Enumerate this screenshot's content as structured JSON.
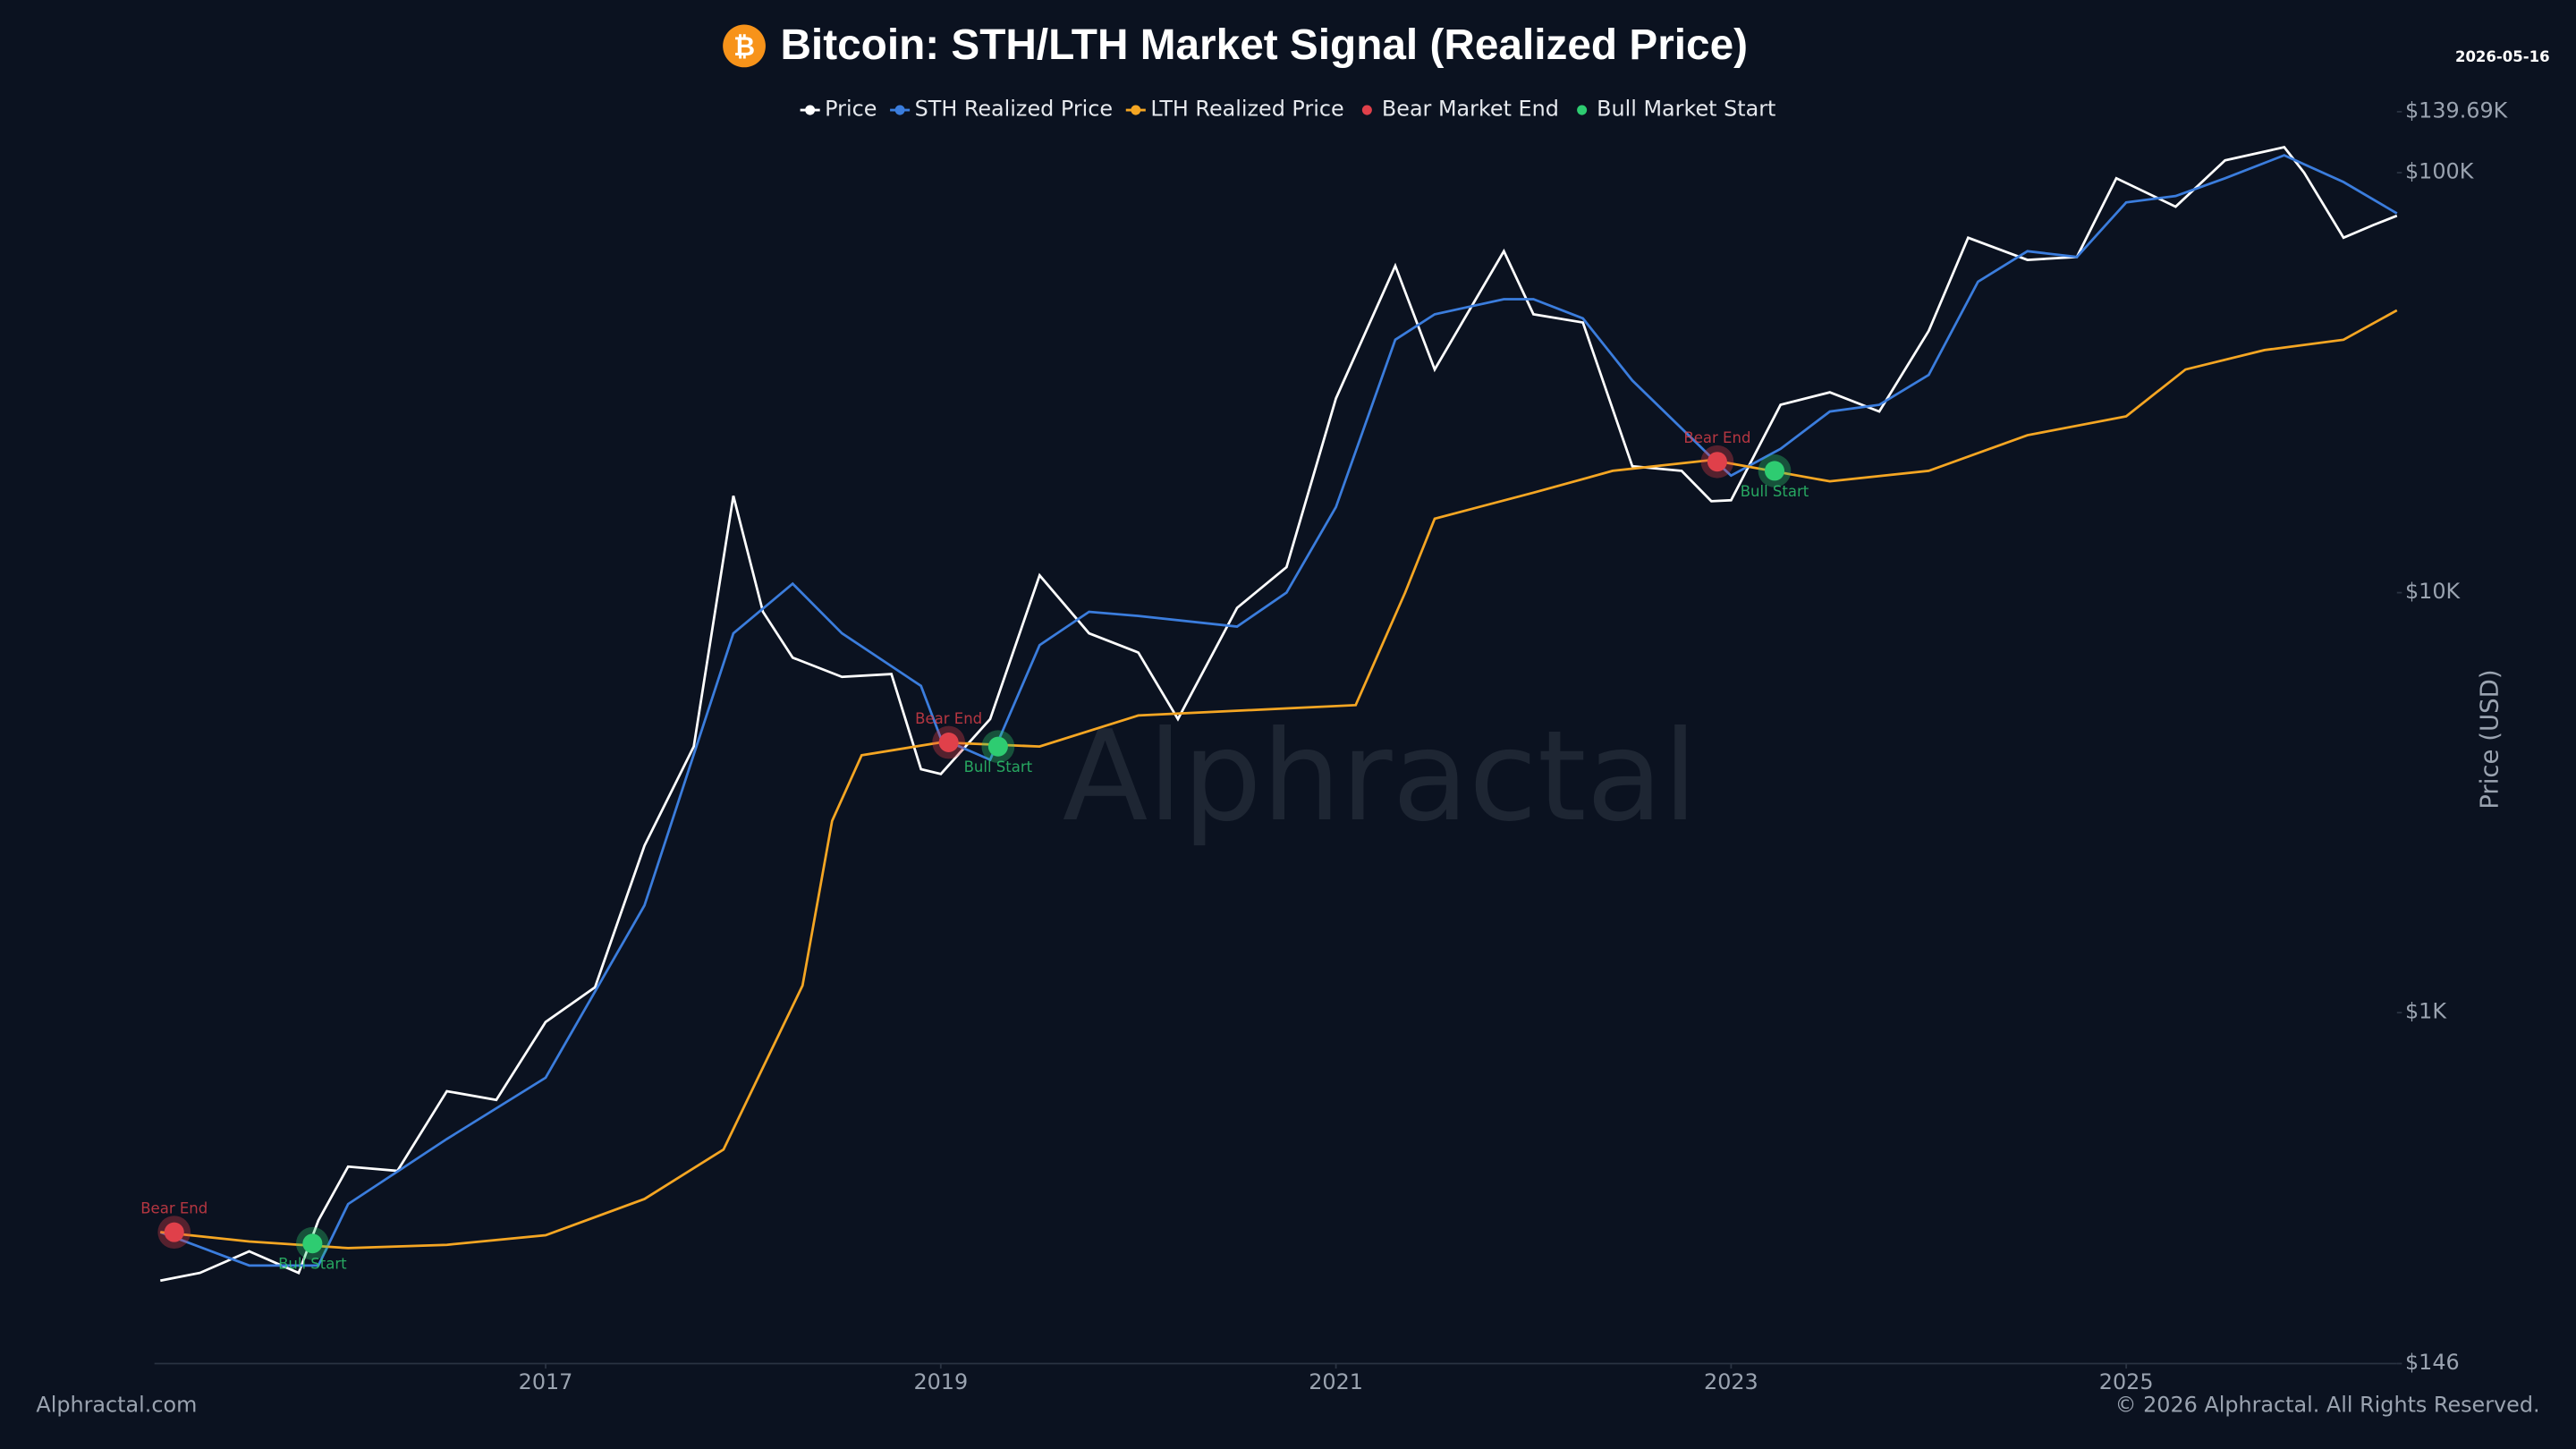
{
  "chart_data": {
    "type": "line",
    "title": "Bitcoin: STH/LTH Market Signal (Realized Price)",
    "title_icon": "₿",
    "date": "2026-05-16",
    "y_label": "Price (USD)",
    "watermark": "Alphractal",
    "footer_left": "Alphractal.com",
    "footer_right": "© 2026 Alphractal. All Rights Reserved.",
    "log_y": true,
    "xlim": [
      2015.02,
      2026.37
    ],
    "xticks": [
      2017,
      2019,
      2021,
      2023,
      2025
    ],
    "ylim": [
      146,
      139690
    ],
    "yticks": [
      {
        "value": 146,
        "label": "$146"
      },
      {
        "value": 1000,
        "label": "$1K"
      },
      {
        "value": 10000,
        "label": "$10K"
      },
      {
        "value": 100000,
        "label": "$100K"
      },
      {
        "value": 139690,
        "label": "$139.69K"
      }
    ],
    "series": [
      {
        "name": "Price",
        "color": "#ffffff",
        "x": [
          2015.05,
          2015.25,
          2015.5,
          2015.75,
          2015.85,
          2016.0,
          2016.25,
          2016.5,
          2016.75,
          2017.0,
          2017.25,
          2017.5,
          2017.75,
          2017.95,
          2018.1,
          2018.25,
          2018.5,
          2018.75,
          2018.9,
          2019.0,
          2019.25,
          2019.5,
          2019.75,
          2020.0,
          2020.2,
          2020.5,
          2020.75,
          2021.0,
          2021.3,
          2021.5,
          2021.85,
          2022.0,
          2022.25,
          2022.5,
          2022.75,
          2022.9,
          2023.0,
          2023.25,
          2023.5,
          2023.75,
          2024.0,
          2024.2,
          2024.5,
          2024.75,
          2024.95,
          2025.25,
          2025.5,
          2025.8,
          2025.9,
          2026.1,
          2026.25,
          2026.37
        ],
        "values": [
          230,
          240,
          270,
          240,
          320,
          430,
          420,
          650,
          620,
          950,
          1150,
          2500,
          4300,
          17000,
          9000,
          7000,
          6300,
          6400,
          3800,
          3700,
          5000,
          11000,
          8000,
          7200,
          5000,
          9200,
          11500,
          29000,
          60000,
          34000,
          65000,
          46000,
          44000,
          20000,
          19500,
          16500,
          16600,
          28000,
          30000,
          27000,
          42000,
          70000,
          62000,
          63000,
          97000,
          83000,
          107000,
          115000,
          100000,
          70000,
          75000,
          79000
        ]
      },
      {
        "name": "STH Realized Price",
        "color": "#3b7ddd",
        "x": [
          2015.05,
          2015.5,
          2015.85,
          2016.0,
          2016.5,
          2017.0,
          2017.5,
          2017.95,
          2018.25,
          2018.5,
          2018.9,
          2019.0,
          2019.25,
          2019.5,
          2019.75,
          2020.0,
          2020.5,
          2020.75,
          2021.0,
          2021.3,
          2021.5,
          2021.85,
          2022.0,
          2022.25,
          2022.5,
          2022.9,
          2023.0,
          2023.25,
          2023.5,
          2023.75,
          2024.0,
          2024.25,
          2024.5,
          2024.75,
          2025.0,
          2025.25,
          2025.5,
          2025.8,
          2026.1,
          2026.37
        ],
        "values": [
          300,
          250,
          250,
          350,
          500,
          700,
          1800,
          8000,
          10500,
          8000,
          6000,
          4500,
          4000,
          7500,
          9000,
          8800,
          8300,
          10000,
          16000,
          40000,
          46000,
          50000,
          50000,
          45000,
          32000,
          21000,
          19000,
          22000,
          27000,
          28000,
          33000,
          55000,
          65000,
          63000,
          85000,
          88000,
          97000,
          110000,
          95000,
          80000
        ]
      },
      {
        "name": "LTH Realized Price",
        "color": "#f5a623",
        "x": [
          2015.05,
          2015.5,
          2016.0,
          2016.5,
          2017.0,
          2017.5,
          2017.9,
          2018.1,
          2018.3,
          2018.45,
          2018.6,
          2019.0,
          2019.5,
          2020.0,
          2020.75,
          2021.1,
          2021.35,
          2021.5,
          2022.0,
          2022.4,
          2022.9,
          2023.5,
          2024.0,
          2024.5,
          2025.0,
          2025.3,
          2025.7,
          2026.1,
          2026.37
        ],
        "values": [
          300,
          285,
          275,
          280,
          295,
          360,
          472,
          740,
          1160,
          2860,
          4100,
          4400,
          4300,
          5100,
          5300,
          5400,
          10000,
          15000,
          17300,
          19500,
          20700,
          18400,
          19500,
          23700,
          26300,
          34000,
          37800,
          40000,
          47000
        ]
      },
      {
        "name": "Bear Market End",
        "color": "#e0404a",
        "label": "Bear End",
        "marker": true,
        "x": [
          2015.12,
          2019.04,
          2022.93
        ],
        "values": [
          300,
          4400,
          20500
        ]
      },
      {
        "name": "Bull Market Start",
        "color": "#2ecc71",
        "label": "Bull Start",
        "marker": true,
        "x": [
          2015.82,
          2019.29,
          2023.22
        ],
        "values": [
          282,
          4300,
          19500
        ]
      }
    ]
  }
}
